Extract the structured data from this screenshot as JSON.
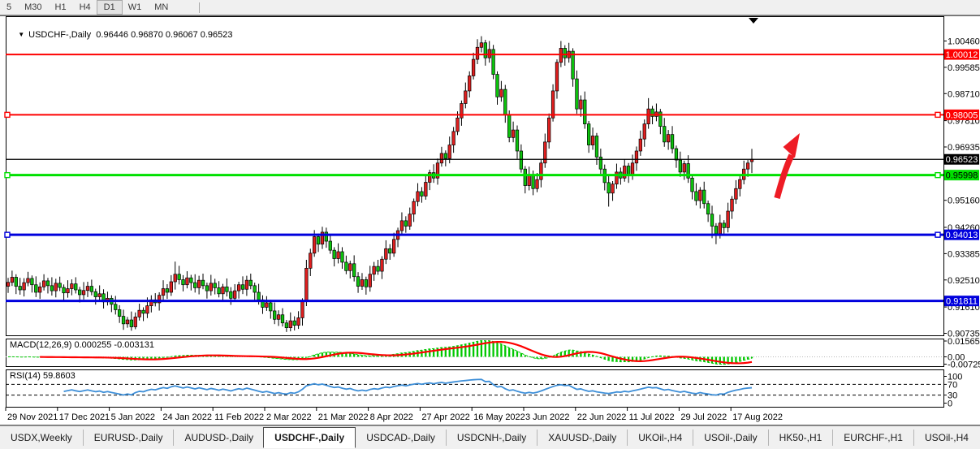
{
  "toolbar": {
    "timeframes": [
      {
        "label": "5",
        "active": false
      },
      {
        "label": "M30",
        "active": false
      },
      {
        "label": "H1",
        "active": false
      },
      {
        "label": "H4",
        "active": false
      },
      {
        "label": "D1",
        "active": true
      },
      {
        "label": "W1",
        "active": false
      },
      {
        "label": "MN",
        "active": false
      }
    ]
  },
  "chart": {
    "title": {
      "dropdown_icon": "▼",
      "symbol": "USDCHF-,Daily",
      "ohlc": "0.96446 0.96870 0.96067 0.96523"
    }
  },
  "tabs": {
    "items": [
      {
        "label": "USDX,Weekly",
        "active": false
      },
      {
        "label": "EURUSD-,Daily",
        "active": false
      },
      {
        "label": "AUDUSD-,Daily",
        "active": false
      },
      {
        "label": "USDCHF-,Daily",
        "active": true
      },
      {
        "label": "USDCAD-,Daily",
        "active": false
      },
      {
        "label": "USDCNH-,Daily",
        "active": false
      },
      {
        "label": "XAUUSD-,Daily",
        "active": false
      },
      {
        "label": "UKOil-,H4",
        "active": false
      },
      {
        "label": "USOil-,Daily",
        "active": false
      },
      {
        "label": "HK50-,H1",
        "active": false
      },
      {
        "label": "EURCHF-,H1",
        "active": false
      },
      {
        "label": "USOil-,H4",
        "active": false
      }
    ],
    "scroll_left": "◄",
    "scroll_right": "►"
  },
  "colors": {
    "bull": "#e01f1f",
    "bear": "#0cc40c",
    "wick": "#000000",
    "line_red": "#fe0000",
    "line_green": "#00e000",
    "line_blue": "#0000dd",
    "price_line": "#000000",
    "macd_hist": "#00c800",
    "macd_signal": "#fe0000",
    "rsi_line": "#3e8fd8",
    "axis_text": "#000000"
  },
  "chart_data": {
    "type": "candlestick",
    "symbol": "USDCHF-",
    "timeframe": "Daily",
    "last_ohlc": {
      "open": 0.96446,
      "high": 0.9687,
      "low": 0.96067,
      "close": 0.96523
    },
    "ylim": [
      0.90735,
      1.0046
    ],
    "y_axis_ticks": [
      "1.00460",
      "0.99585",
      "0.98710",
      "0.97810",
      "0.96935",
      "0.95160",
      "0.94260",
      "0.93385",
      "0.92510",
      "0.91610",
      "0.90735"
    ],
    "x_axis_dates": [
      "29 Nov 2021",
      "17 Dec 2021",
      "5 Jan 2022",
      "24 Jan 2022",
      "11 Feb 2022",
      "2 Mar 2022",
      "21 Mar 2022",
      "8 Apr 2022",
      "27 Apr 2022",
      "16 May 2022",
      "3 Jun 2022",
      "22 Jun 2022",
      "11 Jul 2022",
      "29 Jul 2022",
      "17 Aug 2022"
    ],
    "levels": [
      {
        "label": "1.00012",
        "price": 1.00012,
        "color": "#fe0000",
        "width": 2,
        "selected": false,
        "text_color": "#ffffff"
      },
      {
        "label": "0.98005",
        "price": 0.98005,
        "color": "#fe0000",
        "width": 2,
        "selected": true,
        "text_color": "#ffffff"
      },
      {
        "label": "0.95998",
        "price": 0.95998,
        "color": "#00e000",
        "width": 3,
        "selected": true,
        "text_color": "#000000"
      },
      {
        "label": "0.94013",
        "price": 0.94013,
        "color": "#0000dd",
        "width": 3,
        "selected": true,
        "text_color": "#ffffff"
      },
      {
        "label": "0.91811",
        "price": 0.91811,
        "color": "#0000dd",
        "width": 3,
        "selected": false,
        "text_color": "#ffffff"
      }
    ],
    "price_line": {
      "label": "0.96523",
      "price": 0.96523,
      "color": "#000000",
      "text_color": "#ffffff"
    },
    "indicators": {
      "macd": {
        "label": "MACD(12,26,9) 0.000255 -0.003131",
        "params": [
          12,
          26,
          9
        ],
        "values": [
          0.000255,
          -0.003131
        ],
        "axis_labels": [
          "0.015654",
          "0.00",
          "-0.007259"
        ]
      },
      "rsi": {
        "label": "RSI(14) 59.8603",
        "period": 14,
        "value": 59.8603,
        "axis_labels": [
          "100",
          "70",
          "30",
          "0"
        ],
        "levels": [
          70,
          30
        ]
      }
    },
    "annotations": [
      {
        "type": "up-arrow",
        "color": "#ee1c25",
        "description": "red curved arrow pointing up-right above 0.95998 line"
      }
    ],
    "candles": [
      [
        0.923,
        0.9258,
        0.9208,
        0.9243
      ],
      [
        0.9243,
        0.9282,
        0.9231,
        0.926
      ],
      [
        0.926,
        0.927,
        0.9204,
        0.923
      ],
      [
        0.923,
        0.9258,
        0.9202,
        0.9218
      ],
      [
        0.9218,
        0.9257,
        0.9196,
        0.9242
      ],
      [
        0.9242,
        0.9278,
        0.923,
        0.9256
      ],
      [
        0.9256,
        0.9266,
        0.9209,
        0.9235
      ],
      [
        0.9235,
        0.9263,
        0.9194,
        0.921
      ],
      [
        0.921,
        0.9243,
        0.9188,
        0.9228
      ],
      [
        0.9228,
        0.927,
        0.9216,
        0.9248
      ],
      [
        0.9248,
        0.9258,
        0.9206,
        0.9232
      ],
      [
        0.9232,
        0.926,
        0.9199,
        0.9215
      ],
      [
        0.9215,
        0.9255,
        0.9193,
        0.924
      ],
      [
        0.924,
        0.9262,
        0.9214,
        0.9226
      ],
      [
        0.9226,
        0.9236,
        0.9182,
        0.9208
      ],
      [
        0.9208,
        0.925,
        0.9192,
        0.9222
      ],
      [
        0.9222,
        0.9253,
        0.92,
        0.9238
      ],
      [
        0.9238,
        0.926,
        0.9206,
        0.9218
      ],
      [
        0.9218,
        0.9228,
        0.9176,
        0.9202
      ],
      [
        0.9202,
        0.9244,
        0.9186,
        0.9216
      ],
      [
        0.9216,
        0.9245,
        0.9194,
        0.923
      ],
      [
        0.923,
        0.9252,
        0.92,
        0.9212
      ],
      [
        0.9212,
        0.9222,
        0.9169,
        0.9195
      ],
      [
        0.9195,
        0.9233,
        0.9179,
        0.9205
      ],
      [
        0.9205,
        0.922,
        0.9156,
        0.9178
      ],
      [
        0.9178,
        0.9212,
        0.9166,
        0.919
      ],
      [
        0.919,
        0.92,
        0.9144,
        0.917
      ],
      [
        0.917,
        0.9198,
        0.9136,
        0.9152
      ],
      [
        0.9152,
        0.9167,
        0.9108,
        0.913
      ],
      [
        0.913,
        0.9152,
        0.9085,
        0.9105
      ],
      [
        0.9105,
        0.9128,
        0.9092,
        0.9118
      ],
      [
        0.9118,
        0.9146,
        0.9082,
        0.9095
      ],
      [
        0.9095,
        0.9143,
        0.9087,
        0.9128
      ],
      [
        0.9128,
        0.9172,
        0.9116,
        0.915
      ],
      [
        0.915,
        0.916,
        0.9114,
        0.914
      ],
      [
        0.914,
        0.9193,
        0.9124,
        0.9165
      ],
      [
        0.9165,
        0.92,
        0.9143,
        0.9185
      ],
      [
        0.9185,
        0.9207,
        0.9163,
        0.9175
      ],
      [
        0.9175,
        0.921,
        0.9149,
        0.92
      ],
      [
        0.92,
        0.925,
        0.9184,
        0.9222
      ],
      [
        0.9222,
        0.9237,
        0.9188,
        0.921
      ],
      [
        0.921,
        0.9267,
        0.9198,
        0.9245
      ],
      [
        0.9245,
        0.9312,
        0.9219,
        0.927
      ],
      [
        0.927,
        0.9298,
        0.9236,
        0.9252
      ],
      [
        0.9252,
        0.9267,
        0.9213,
        0.9235
      ],
      [
        0.9235,
        0.928,
        0.9223,
        0.9258
      ],
      [
        0.9258,
        0.9268,
        0.9216,
        0.9242
      ],
      [
        0.9242,
        0.927,
        0.9209,
        0.9225
      ],
      [
        0.9225,
        0.9265,
        0.9203,
        0.925
      ],
      [
        0.925,
        0.9272,
        0.922,
        0.9232
      ],
      [
        0.9232,
        0.9242,
        0.9189,
        0.9215
      ],
      [
        0.9215,
        0.9268,
        0.9199,
        0.924
      ],
      [
        0.924,
        0.9255,
        0.9203,
        0.9225
      ],
      [
        0.9225,
        0.9247,
        0.9193,
        0.9205
      ],
      [
        0.9205,
        0.9238,
        0.9179,
        0.9228
      ],
      [
        0.9228,
        0.9256,
        0.9196,
        0.9212
      ],
      [
        0.9212,
        0.9227,
        0.9168,
        0.919
      ],
      [
        0.919,
        0.9237,
        0.9178,
        0.9215
      ],
      [
        0.9215,
        0.9245,
        0.9189,
        0.9235
      ],
      [
        0.9235,
        0.9263,
        0.9204,
        0.922
      ],
      [
        0.922,
        0.9265,
        0.9198,
        0.925
      ],
      [
        0.925,
        0.9272,
        0.922,
        0.9232
      ],
      [
        0.9232,
        0.9242,
        0.9184,
        0.921
      ],
      [
        0.921,
        0.9238,
        0.9169,
        0.9185
      ],
      [
        0.9185,
        0.92,
        0.9138,
        0.916
      ],
      [
        0.916,
        0.9197,
        0.9148,
        0.9175
      ],
      [
        0.9175,
        0.9185,
        0.9122,
        0.9148
      ],
      [
        0.9148,
        0.9176,
        0.9104,
        0.912
      ],
      [
        0.912,
        0.915,
        0.9098,
        0.9135
      ],
      [
        0.9135,
        0.9157,
        0.9096,
        0.9108
      ],
      [
        0.9108,
        0.9118,
        0.9078,
        0.9092
      ],
      [
        0.9092,
        0.9143,
        0.908,
        0.9115
      ],
      [
        0.9115,
        0.913,
        0.9083,
        0.91
      ],
      [
        0.91,
        0.9147,
        0.9088,
        0.9125
      ],
      [
        0.9125,
        0.919,
        0.9099,
        0.918
      ],
      [
        0.918,
        0.9318,
        0.9164,
        0.929
      ],
      [
        0.929,
        0.9355,
        0.9264,
        0.934
      ],
      [
        0.934,
        0.9417,
        0.9328,
        0.9395
      ],
      [
        0.9395,
        0.9405,
        0.9344,
        0.937
      ],
      [
        0.937,
        0.9428,
        0.9354,
        0.941
      ],
      [
        0.941,
        0.9425,
        0.9358,
        0.938
      ],
      [
        0.938,
        0.9402,
        0.9338,
        0.935
      ],
      [
        0.935,
        0.936,
        0.9296,
        0.9322
      ],
      [
        0.9322,
        0.9373,
        0.9306,
        0.9345
      ],
      [
        0.9345,
        0.936,
        0.9288,
        0.931
      ],
      [
        0.931,
        0.9332,
        0.927,
        0.9282
      ],
      [
        0.9282,
        0.9315,
        0.9256,
        0.9305
      ],
      [
        0.9305,
        0.9333,
        0.9246,
        0.9262
      ],
      [
        0.9262,
        0.9277,
        0.9208,
        0.923
      ],
      [
        0.923,
        0.9274,
        0.9218,
        0.9252
      ],
      [
        0.9252,
        0.9262,
        0.9202,
        0.9228
      ],
      [
        0.9228,
        0.9298,
        0.9212,
        0.927
      ],
      [
        0.927,
        0.9311,
        0.9248,
        0.9296
      ],
      [
        0.9296,
        0.9318,
        0.9268,
        0.928
      ],
      [
        0.928,
        0.933,
        0.9254,
        0.932
      ],
      [
        0.932,
        0.9383,
        0.9304,
        0.9355
      ],
      [
        0.9355,
        0.937,
        0.9318,
        0.934
      ],
      [
        0.934,
        0.9408,
        0.9328,
        0.9386
      ],
      [
        0.9386,
        0.9425,
        0.936,
        0.9415
      ],
      [
        0.9415,
        0.9476,
        0.9399,
        0.9448
      ],
      [
        0.9448,
        0.9463,
        0.9408,
        0.943
      ],
      [
        0.943,
        0.9492,
        0.9418,
        0.947
      ],
      [
        0.947,
        0.9522,
        0.9444,
        0.9512
      ],
      [
        0.9512,
        0.9573,
        0.9496,
        0.9545
      ],
      [
        0.9545,
        0.956,
        0.9508,
        0.953
      ],
      [
        0.953,
        0.9598,
        0.9518,
        0.9576
      ],
      [
        0.9576,
        0.9618,
        0.955,
        0.9608
      ],
      [
        0.9608,
        0.9636,
        0.9574,
        0.959
      ],
      [
        0.959,
        0.9655,
        0.9568,
        0.964
      ],
      [
        0.964,
        0.9694,
        0.9628,
        0.9672
      ],
      [
        0.9672,
        0.9682,
        0.9629,
        0.9655
      ],
      [
        0.9655,
        0.9728,
        0.9639,
        0.97
      ],
      [
        0.97,
        0.976,
        0.9674,
        0.9745
      ],
      [
        0.9745,
        0.9812,
        0.9733,
        0.979
      ],
      [
        0.979,
        0.9848,
        0.9764,
        0.9838
      ],
      [
        0.9838,
        0.9908,
        0.9822,
        0.988
      ],
      [
        0.988,
        0.9945,
        0.9858,
        0.993
      ],
      [
        0.993,
        1.0007,
        0.9918,
        0.9985
      ],
      [
        0.9985,
        1.0052,
        0.9969,
        1.0025
      ],
      [
        1.0025,
        1.0062,
        1.0008,
        1.004
      ],
      [
        1.004,
        1.005,
        0.9964,
        0.999
      ],
      [
        0.999,
        1.0046,
        0.9974,
        1.0018
      ],
      [
        1.0018,
        1.0033,
        0.9919,
        0.9935
      ],
      [
        0.9935,
        0.9945,
        0.9834,
        0.986
      ],
      [
        0.986,
        0.9913,
        0.9844,
        0.9885
      ],
      [
        0.9885,
        0.99,
        0.9774,
        0.98
      ],
      [
        0.98,
        0.9815,
        0.9709,
        0.9725
      ],
      [
        0.9725,
        0.9778,
        0.9709,
        0.975
      ],
      [
        0.975,
        0.9765,
        0.9654,
        0.968
      ],
      [
        0.968,
        0.9702,
        0.9608,
        0.962
      ],
      [
        0.962,
        0.963,
        0.9539,
        0.9565
      ],
      [
        0.9565,
        0.9628,
        0.9549,
        0.96
      ],
      [
        0.96,
        0.9615,
        0.9533,
        0.9555
      ],
      [
        0.9555,
        0.9607,
        0.9543,
        0.9585
      ],
      [
        0.9585,
        0.965,
        0.9559,
        0.964
      ],
      [
        0.964,
        0.9738,
        0.9624,
        0.971
      ],
      [
        0.971,
        0.9805,
        0.9688,
        0.979
      ],
      [
        0.979,
        0.9902,
        0.9778,
        0.988
      ],
      [
        0.988,
        0.9985,
        0.9854,
        0.9975
      ],
      [
        0.9975,
        1.0046,
        0.9959,
        1.0022
      ],
      [
        1.0022,
        1.0032,
        0.9964,
        0.999
      ],
      [
        0.999,
        1.004,
        0.9974,
        1.0012
      ],
      [
        1.0012,
        1.0022,
        0.9894,
        0.992
      ],
      [
        0.992,
        0.9948,
        0.9804,
        0.982
      ],
      [
        0.982,
        0.9865,
        0.9794,
        0.985
      ],
      [
        0.985,
        0.9878,
        0.9754,
        0.977
      ],
      [
        0.977,
        0.978,
        0.9674,
        0.97
      ],
      [
        0.97,
        0.9758,
        0.9684,
        0.973
      ],
      [
        0.973,
        0.974,
        0.9634,
        0.966
      ],
      [
        0.966,
        0.9688,
        0.9604,
        0.962
      ],
      [
        0.962,
        0.9635,
        0.9549,
        0.9575
      ],
      [
        0.9575,
        0.9597,
        0.9495,
        0.954
      ],
      [
        0.954,
        0.958,
        0.9514,
        0.957
      ],
      [
        0.957,
        0.9638,
        0.9554,
        0.961
      ],
      [
        0.961,
        0.9625,
        0.9568,
        0.959
      ],
      [
        0.959,
        0.9652,
        0.9578,
        0.963
      ],
      [
        0.963,
        0.964,
        0.9574,
        0.96
      ],
      [
        0.96,
        0.9668,
        0.9584,
        0.964
      ],
      [
        0.964,
        0.9695,
        0.9614,
        0.968
      ],
      [
        0.968,
        0.9748,
        0.9664,
        0.972
      ],
      [
        0.972,
        0.9785,
        0.9694,
        0.977
      ],
      [
        0.977,
        0.9856,
        0.9754,
        0.982
      ],
      [
        0.982,
        0.983,
        0.9769,
        0.9795
      ],
      [
        0.9795,
        0.9838,
        0.9779,
        0.981
      ],
      [
        0.981,
        0.982,
        0.9736,
        0.9762
      ],
      [
        0.9762,
        0.979,
        0.9694,
        0.971
      ],
      [
        0.971,
        0.975,
        0.9684,
        0.9735
      ],
      [
        0.9735,
        0.9763,
        0.9672,
        0.9688
      ],
      [
        0.9688,
        0.9698,
        0.9624,
        0.965
      ],
      [
        0.965,
        0.9678,
        0.9594,
        0.961
      ],
      [
        0.961,
        0.9648,
        0.9584,
        0.9638
      ],
      [
        0.9638,
        0.9666,
        0.9574,
        0.959
      ],
      [
        0.959,
        0.96,
        0.9519,
        0.9545
      ],
      [
        0.9545,
        0.9573,
        0.9499,
        0.9515
      ],
      [
        0.9515,
        0.956,
        0.9489,
        0.955
      ],
      [
        0.955,
        0.9578,
        0.9489,
        0.9505
      ],
      [
        0.9505,
        0.9515,
        0.9444,
        0.947
      ],
      [
        0.947,
        0.9498,
        0.939,
        0.943
      ],
      [
        0.943,
        0.944,
        0.937,
        0.9405
      ],
      [
        0.9405,
        0.9468,
        0.9389,
        0.944
      ],
      [
        0.944,
        0.945,
        0.9399,
        0.9425
      ],
      [
        0.9425,
        0.9508,
        0.9409,
        0.948
      ],
      [
        0.948,
        0.953,
        0.9454,
        0.952
      ],
      [
        0.952,
        0.9583,
        0.9504,
        0.9555
      ],
      [
        0.9555,
        0.96,
        0.9529,
        0.9585
      ],
      [
        0.9585,
        0.9648,
        0.9569,
        0.962
      ],
      [
        0.962,
        0.965,
        0.9594,
        0.964
      ],
      [
        0.96446,
        0.9687,
        0.96067,
        0.96523
      ]
    ]
  }
}
